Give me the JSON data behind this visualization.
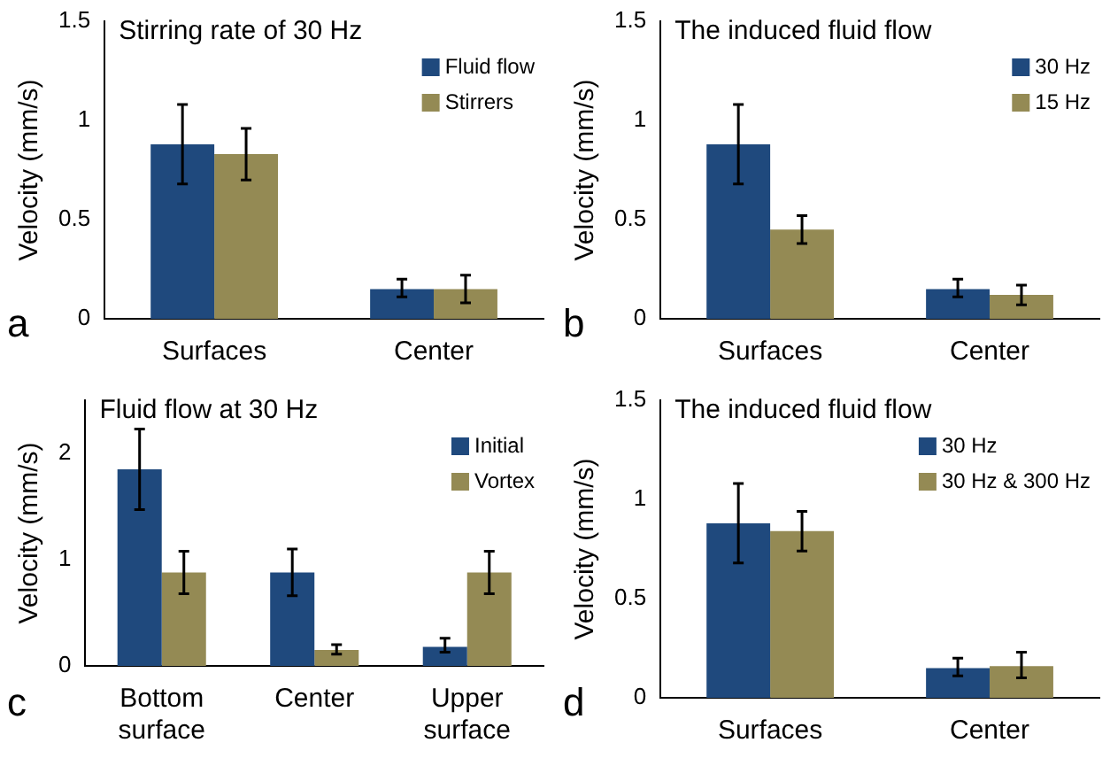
{
  "chart_data": [
    {
      "type": "bar",
      "title": "Stirring rate of 30 Hz",
      "ylabel": "Velocity (mm/s)",
      "categories": [
        "Surfaces",
        "Center"
      ],
      "ylim": [
        0,
        1.5
      ],
      "yticks": [
        0,
        0.5,
        1,
        1.5
      ],
      "legend": "top right",
      "annotations": [
        "a"
      ],
      "series": [
        {
          "name": "Fluid flow",
          "color": "#1f497d",
          "values": [
            0.88,
            0.15
          ],
          "errors": [
            [
              0.68,
              1.08
            ],
            [
              0.11,
              0.2
            ]
          ]
        },
        {
          "name": "Stirrers",
          "color": "#948a54",
          "values": [
            0.83,
            0.15
          ],
          "errors": [
            [
              0.7,
              0.96
            ],
            [
              0.08,
              0.22
            ]
          ]
        }
      ]
    },
    {
      "type": "bar",
      "title": "The induced fluid flow",
      "ylabel": "Velocity (mm/s)",
      "categories": [
        "Surfaces",
        "Center"
      ],
      "ylim": [
        0,
        1.5
      ],
      "yticks": [
        0,
        0.5,
        1,
        1.5
      ],
      "legend": "top right",
      "annotations": [
        "b"
      ],
      "series": [
        {
          "name": "30 Hz",
          "color": "#1f497d",
          "values": [
            0.88,
            0.15
          ],
          "errors": [
            [
              0.68,
              1.08
            ],
            [
              0.11,
              0.2
            ]
          ]
        },
        {
          "name": "15 Hz",
          "color": "#948a54",
          "values": [
            0.45,
            0.12
          ],
          "errors": [
            [
              0.38,
              0.52
            ],
            [
              0.07,
              0.17
            ]
          ]
        }
      ]
    },
    {
      "type": "bar",
      "title": "Fluid flow at 30 Hz",
      "ylabel": "Velocity (mm/s)",
      "categories": [
        "Bottom\nsurface",
        "Center",
        "Upper\nsurface"
      ],
      "ylim": [
        0,
        2.5
      ],
      "yticks": [
        0,
        1,
        2
      ],
      "legend": "top right",
      "annotations": [
        "c"
      ],
      "series": [
        {
          "name": "Initial",
          "color": "#1f497d",
          "values": [
            1.85,
            0.88,
            0.18
          ],
          "errors": [
            [
              1.47,
              2.23
            ],
            [
              0.66,
              1.1
            ],
            [
              0.13,
              0.26
            ]
          ]
        },
        {
          "name": "Vortex",
          "color": "#948a54",
          "values": [
            0.88,
            0.15,
            0.88
          ],
          "errors": [
            [
              0.68,
              1.08
            ],
            [
              0.11,
              0.2
            ],
            [
              0.68,
              1.08
            ]
          ]
        }
      ]
    },
    {
      "type": "bar",
      "title": "The induced fluid flow",
      "ylabel": "Velocity (mm/s)",
      "categories": [
        "Surfaces",
        "Center"
      ],
      "ylim": [
        0,
        1.5
      ],
      "yticks": [
        0,
        0.5,
        1,
        1.5
      ],
      "legend": "top right",
      "annotations": [
        "d"
      ],
      "series": [
        {
          "name": "30 Hz",
          "color": "#1f497d",
          "values": [
            0.88,
            0.15
          ],
          "errors": [
            [
              0.68,
              1.08
            ],
            [
              0.11,
              0.2
            ]
          ]
        },
        {
          "name": "30 Hz & 300 Hz",
          "color": "#948a54",
          "values": [
            0.84,
            0.16
          ],
          "errors": [
            [
              0.74,
              0.94
            ],
            [
              0.1,
              0.23
            ]
          ]
        }
      ]
    }
  ]
}
